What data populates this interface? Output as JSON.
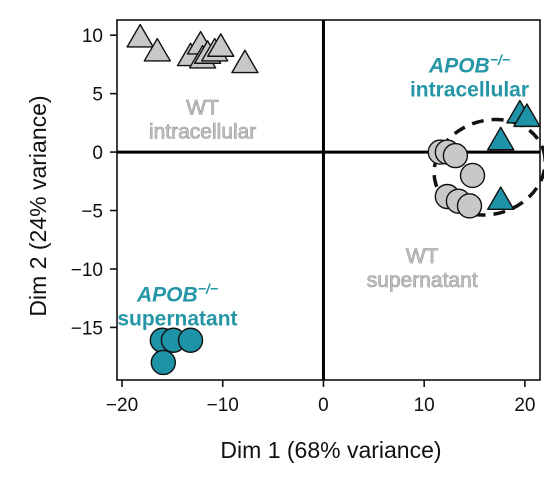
{
  "chart_data": {
    "type": "scatter",
    "xlabel": "Dim 1 (68% variance)",
    "ylabel": "Dim 2 (24% variance)",
    "xlim": [
      -20.5,
      21.5
    ],
    "ylim": [
      -19.5,
      11.3
    ],
    "x_ticks": [
      {
        "value": -20,
        "label": "−20"
      },
      {
        "value": -10,
        "label": "−10"
      },
      {
        "value": 0,
        "label": "0"
      },
      {
        "value": 10,
        "label": "10"
      },
      {
        "value": 20,
        "label": "20"
      }
    ],
    "y_ticks": [
      {
        "value": 10,
        "label": "10"
      },
      {
        "value": 5,
        "label": "5"
      },
      {
        "value": 0,
        "label": "0"
      },
      {
        "value": -5,
        "label": "−5"
      },
      {
        "value": -10,
        "label": "−10"
      },
      {
        "value": -15,
        "label": "−15"
      }
    ],
    "zero_lines": true,
    "grid": false,
    "colors": {
      "wt": "#c8c8c8",
      "ko": "#1e92a6",
      "edge": "#111111",
      "wt_label": "#b9b9b9",
      "ko_label": "#2496a6"
    },
    "groups": [
      {
        "id": "wt-intracellular",
        "marker": "triangle",
        "color_key": "wt",
        "label_lines": [
          "WT",
          "intracellular"
        ],
        "label_pos": [
          -12,
          3.2
        ],
        "points": [
          {
            "x": -18.2,
            "y": 9.8
          },
          {
            "x": -16.5,
            "y": 8.6
          },
          {
            "x": -13.2,
            "y": 8.2
          },
          {
            "x": -12.2,
            "y": 9.2
          },
          {
            "x": -12.0,
            "y": 8.0
          },
          {
            "x": -11.5,
            "y": 8.4
          },
          {
            "x": -10.8,
            "y": 8.6
          },
          {
            "x": -10.2,
            "y": 9.0
          },
          {
            "x": -7.8,
            "y": 7.6
          }
        ]
      },
      {
        "id": "ko-intracellular",
        "marker": "triangle",
        "color_key": "ko",
        "label_lines": [
          "APOB−/−",
          "intracellular"
        ],
        "label_pos": [
          14.5,
          6.8
        ],
        "points": [
          {
            "x": 17.6,
            "y": 1.0
          },
          {
            "x": 19.5,
            "y": 3.3
          },
          {
            "x": 20.2,
            "y": 3.0
          },
          {
            "x": 17.6,
            "y": -4.1
          }
        ]
      },
      {
        "id": "wt-supernatant",
        "marker": "circle",
        "color_key": "wt",
        "label_lines": [
          "WT",
          "supernatant"
        ],
        "label_pos": [
          9.8,
          -9.5
        ],
        "points": [
          {
            "x": 11.6,
            "y": 0.0
          },
          {
            "x": 12.3,
            "y": 0.0
          },
          {
            "x": 13.1,
            "y": -0.3
          },
          {
            "x": 14.8,
            "y": -2.0
          },
          {
            "x": 12.3,
            "y": -3.8
          },
          {
            "x": 13.4,
            "y": -4.2
          },
          {
            "x": 14.5,
            "y": -4.6
          }
        ]
      },
      {
        "id": "ko-supernatant",
        "marker": "circle",
        "color_key": "ko",
        "label_lines": [
          "APOB−/−",
          "supernatant"
        ],
        "label_pos": [
          -14.5,
          -12.8
        ],
        "points": [
          {
            "x": -16.0,
            "y": -16.1
          },
          {
            "x": -14.9,
            "y": -16.1
          },
          {
            "x": -13.2,
            "y": -16.1
          },
          {
            "x": -15.9,
            "y": -18.0
          }
        ]
      }
    ],
    "ellipse": {
      "cx": 16.5,
      "cy": -1.3,
      "rx": 5.6,
      "ry": 4.0,
      "rotation_deg": 18,
      "style": "dashed"
    }
  }
}
